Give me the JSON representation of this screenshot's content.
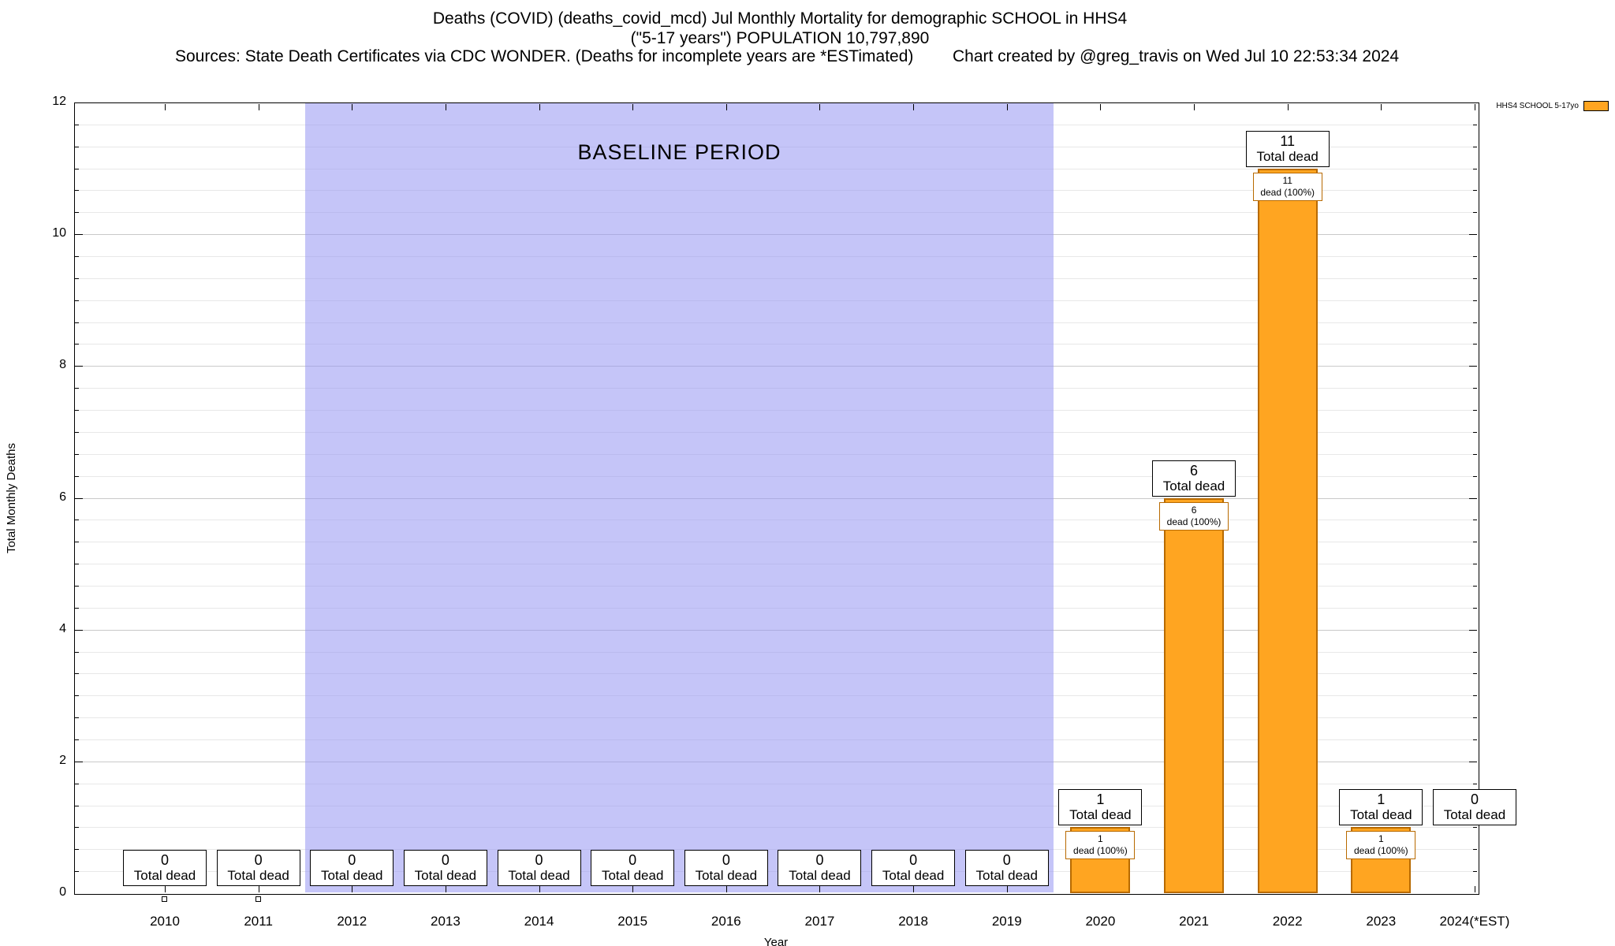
{
  "header": {
    "title_line1": "Deaths (COVID) (deaths_covid_mcd) Jul Monthly Mortality for demographic SCHOOL in HHS4",
    "title_line2": "(\"5-17 years\") POPULATION 10,797,890",
    "sources": "Sources: State Death Certificates via CDC WONDER. (Deaths for incomplete years are *ESTimated)",
    "credit": "Chart created by @greg_travis on Wed Jul 10 22:53:34 2024"
  },
  "chart_data": {
    "type": "bar",
    "title": "Deaths (COVID) (deaths_covid_mcd) Jul Monthly Mortality for demographic SCHOOL in HHS4",
    "subtitle": "(\"5-17 years\") POPULATION 10,797,890",
    "xlabel": "Year",
    "ylabel": "Total Monthly Deaths",
    "ylim": [
      0,
      12
    ],
    "yticks": [
      0,
      2,
      4,
      6,
      8,
      10,
      12
    ],
    "categories": [
      "2010",
      "2011",
      "2012",
      "2013",
      "2014",
      "2015",
      "2016",
      "2017",
      "2018",
      "2019",
      "2020",
      "2021",
      "2022",
      "2023",
      "2024(*EST)"
    ],
    "values": [
      0,
      0,
      0,
      0,
      0,
      0,
      0,
      0,
      0,
      0,
      1,
      6,
      11,
      1,
      0
    ],
    "series_name": "HHS4 SCHOOL 5-17yo",
    "bar_color": "#ffa521",
    "bar_border_color": "#b86a00",
    "legend_position": "top-right-outside",
    "grid": {
      "on": true,
      "minor_step": 0.333333,
      "major_color": "#c9c9c9",
      "minor_color": "#e8e8e8"
    },
    "baseline_region": {
      "label": "BASELINE PERIOD",
      "start_category": "2012",
      "end_category": "2019",
      "color": "#9696f3"
    },
    "annotations": {
      "total_box_line2": "Total dead",
      "inner_box_line2": "dead (100%)",
      "total_label_y": [
        0.08,
        0.08,
        0.08,
        0.08,
        0.08,
        0.08,
        0.08,
        0.08,
        0.08,
        0.08,
        1,
        6,
        11,
        1,
        1
      ],
      "zero_axis_markers": [
        "2010",
        "2011"
      ]
    }
  }
}
